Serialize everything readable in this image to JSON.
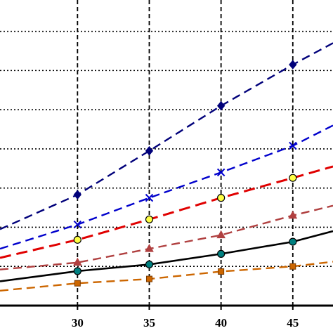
{
  "chart_data": {
    "type": "line",
    "title": "",
    "xlabel": "",
    "ylabel": "",
    "xlim": [
      24.6,
      47.8
    ],
    "ylim": [
      0,
      7.8
    ],
    "grid": true,
    "x_ticks": [
      30,
      35,
      40,
      45
    ],
    "x_tick_labels": [
      "30",
      "35",
      "40",
      "45"
    ],
    "y_gridlines": [
      1,
      2,
      3,
      4,
      5,
      6,
      7,
      8
    ],
    "series": [
      {
        "color": "#00007a",
        "line_style": "dashed",
        "marker": "diamond",
        "marker_fill": "#00007a",
        "x": [
          24.6,
          30,
          35,
          40,
          45,
          47.8
        ],
        "y": [
          1.95,
          2.83,
          3.95,
          5.1,
          6.15,
          6.7
        ],
        "marked_x": [
          30,
          35,
          40,
          45
        ]
      },
      {
        "color": "#0000cc",
        "line_style": "dashed",
        "marker": "x",
        "marker_fill": "#0000cc",
        "x": [
          24.6,
          30,
          35,
          40,
          45,
          47.8
        ],
        "y": [
          1.45,
          2.07,
          2.75,
          3.4,
          4.08,
          4.6
        ],
        "marked_x": [
          30,
          35,
          40,
          45
        ]
      },
      {
        "color": "#e00000",
        "line_style": "long-dash",
        "marker": "circle",
        "marker_fill": "#ffff44",
        "x": [
          24.6,
          30,
          35,
          40,
          45,
          47.8
        ],
        "y": [
          1.22,
          1.68,
          2.2,
          2.75,
          3.26,
          3.55
        ],
        "marked_x": [
          30,
          35,
          40,
          45
        ]
      },
      {
        "color": "#b04040",
        "line_style": "dashed",
        "marker": "triangle",
        "marker_fill": "#b04040",
        "x": [
          24.6,
          30,
          35,
          40,
          45,
          47.8
        ],
        "y": [
          0.92,
          1.1,
          1.45,
          1.8,
          2.3,
          2.55
        ],
        "marked_x": [
          30,
          35,
          40,
          45
        ]
      },
      {
        "color": "#000000",
        "line_style": "solid",
        "marker": "circle",
        "marker_fill": "#008080",
        "x": [
          24.6,
          30,
          35,
          40,
          45,
          47.8
        ],
        "y": [
          0.62,
          0.88,
          1.05,
          1.32,
          1.63,
          1.9
        ],
        "marked_x": [
          30,
          35,
          40,
          45
        ]
      },
      {
        "color": "#cc6600",
        "line_style": "dashed",
        "marker": "square",
        "marker_fill": "#cc6600",
        "x": [
          24.6,
          30,
          35,
          40,
          45,
          47.8
        ],
        "y": [
          0.38,
          0.57,
          0.68,
          0.87,
          1.0,
          1.12
        ],
        "marked_x": [
          30,
          35,
          40,
          45
        ]
      }
    ]
  }
}
